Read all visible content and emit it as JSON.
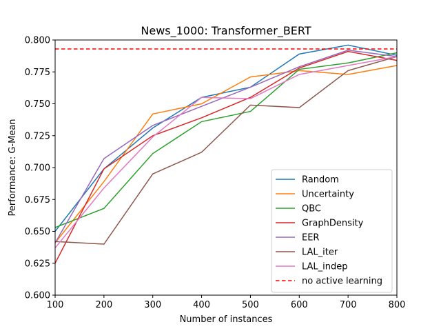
{
  "chart_data": {
    "type": "line",
    "title": "News_1000: Transformer_BERT",
    "xlabel": "Number of instances",
    "ylabel": "Performance: G-Mean",
    "xlim": [
      100,
      800
    ],
    "ylim": [
      0.6,
      0.8
    ],
    "x": [
      100,
      200,
      300,
      400,
      500,
      600,
      700,
      800
    ],
    "xticks": [
      "100",
      "200",
      "300",
      "400",
      "500",
      "600",
      "700",
      "800"
    ],
    "yticks": [
      "0.600",
      "0.625",
      "0.650",
      "0.675",
      "0.700",
      "0.725",
      "0.750",
      "0.775",
      "0.800"
    ],
    "grid": false,
    "legend_position": "bottom-right",
    "series": [
      {
        "name": "Random",
        "color": "#1f77b4",
        "values": [
          0.65,
          0.699,
          0.731,
          0.755,
          0.763,
          0.789,
          0.796,
          0.788
        ]
      },
      {
        "name": "Uncertainty",
        "color": "#ff7f0e",
        "values": [
          0.641,
          0.689,
          0.742,
          0.75,
          0.771,
          0.776,
          0.773,
          0.78
        ]
      },
      {
        "name": "QBC",
        "color": "#2ca02c",
        "values": [
          0.653,
          0.668,
          0.711,
          0.736,
          0.744,
          0.777,
          0.782,
          0.79
        ]
      },
      {
        "name": "GraphDensity",
        "color": "#d62728",
        "values": [
          0.625,
          0.699,
          0.725,
          0.739,
          0.755,
          0.778,
          0.791,
          0.784
        ]
      },
      {
        "name": "EER",
        "color": "#9467bd",
        "values": [
          0.641,
          0.707,
          0.733,
          0.748,
          0.763,
          0.779,
          0.792,
          0.787
        ]
      },
      {
        "name": "LAL_iter",
        "color": "#8c564b",
        "values": [
          0.642,
          0.64,
          0.695,
          0.712,
          0.749,
          0.747,
          0.776,
          0.787
        ]
      },
      {
        "name": "LAL_indep",
        "color": "#e377c2",
        "values": [
          0.637,
          0.684,
          0.724,
          0.755,
          0.754,
          0.773,
          0.78,
          0.787
        ]
      },
      {
        "name": "no active learning",
        "color": "#ff0000",
        "dashed": true,
        "values": [
          0.793,
          0.793,
          0.793,
          0.793,
          0.793,
          0.793,
          0.793,
          0.793
        ]
      }
    ]
  }
}
